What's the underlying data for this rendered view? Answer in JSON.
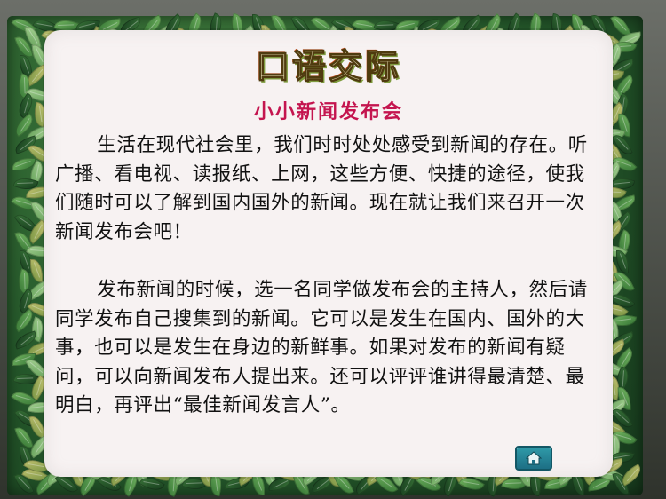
{
  "slide": {
    "title": "口语交际",
    "subtitle": "小小新闻发布会",
    "paragraphs": [
      "生活在现代社会里，我们时时处处感受到新闻的存在。听广播、看电视、读报纸、上网，这些方便、快捷的途径，使我们随时可以了解到国内国外的新闻。现在就让我们来召开一次新闻发布会吧！",
      "发布新闻的时候，选一名同学做发布会的主持人，然后请同学发布自己搜集到的新闻。它可以是发生在国内、国外的大事，也可以是发生在身边的新鲜事。如果对发布的新闻有疑问，可以向新闻发布人提出来。还可以评评谁讲得最清楚、最明白，再评出“最佳新闻发言人”。"
    ]
  },
  "controls": {
    "home_icon": "home-icon"
  },
  "colors": {
    "subtitle": "#c4154f",
    "paper": "#f7f2f2",
    "frame": "#24572a",
    "home_button": "#1d6f85"
  }
}
